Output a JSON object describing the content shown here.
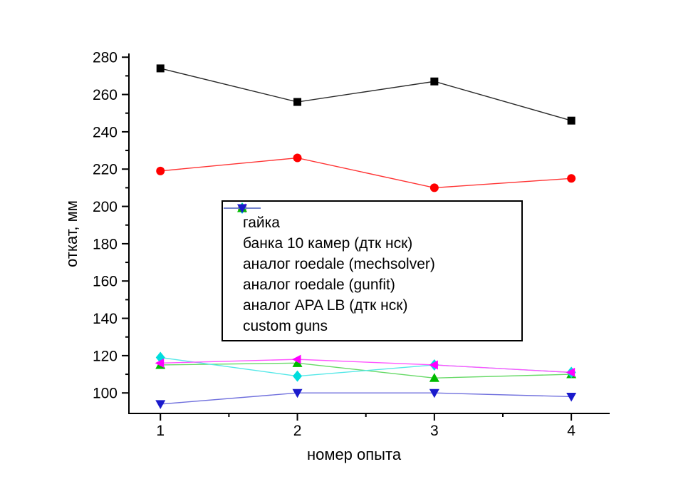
{
  "chart_data": {
    "type": "line",
    "x": [
      1,
      2,
      3,
      4
    ],
    "xlabel": "номер опыта",
    "ylabel": "откат, мм",
    "xlim": [
      0.77,
      4.28
    ],
    "ylim": [
      89,
      282
    ],
    "x_ticks": [
      1,
      2,
      3,
      4
    ],
    "x_minor_ticks": [
      1.5,
      2.5,
      3.5
    ],
    "y_ticks": [
      100,
      120,
      140,
      160,
      180,
      200,
      220,
      240,
      260,
      280
    ],
    "y_minor_ticks": [
      110,
      130,
      150,
      170,
      190,
      210,
      230,
      250,
      270
    ],
    "grid": false,
    "legend_position": "center",
    "background_color": "#ffffff",
    "axis_color": "#000000",
    "series": [
      {
        "name": "гайка",
        "marker": "square",
        "color": "#000000",
        "line_color": "#2a2a2a",
        "values": [
          274,
          256,
          267,
          246
        ]
      },
      {
        "name": "банка 10 камер (дтк нск)",
        "marker": "circle",
        "color": "#ff0000",
        "line_color": "#ff3333",
        "values": [
          219,
          226,
          210,
          215
        ]
      },
      {
        "name": "аналог roedale (mechsolver)",
        "marker": "triangle-left",
        "color": "#ff00ff",
        "line_color": "#ff55ff",
        "values": [
          116,
          118,
          115,
          111
        ]
      },
      {
        "name": "аналог roedale (gunfit)",
        "marker": "diamond",
        "color": "#00dddd",
        "line_color": "#55e8e8",
        "values": [
          119,
          109,
          115,
          111
        ]
      },
      {
        "name": "аналог APA LB (дтк нск)",
        "marker": "triangle-up",
        "color": "#00bb00",
        "line_color": "#66d966",
        "values": [
          115,
          116,
          108,
          110
        ]
      },
      {
        "name": "custom guns",
        "marker": "triangle-down",
        "color": "#1a1acc",
        "line_color": "#7070dd",
        "values": [
          94,
          100,
          100,
          98
        ]
      }
    ]
  }
}
